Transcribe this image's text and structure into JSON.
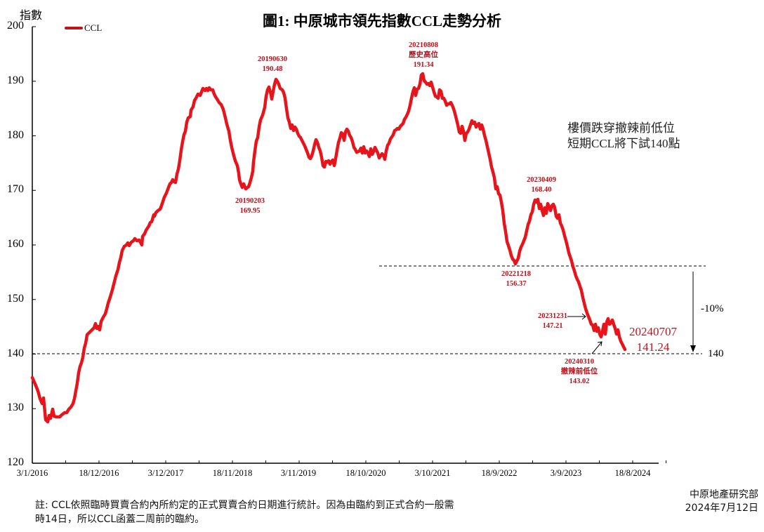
{
  "chart_data": {
    "type": "line",
    "title": "圖1: 中原城市領先指數CCL走勢分析",
    "ylabel": "指數",
    "xlabel": "",
    "ylim": [
      120,
      200
    ],
    "yticks": [
      120,
      130,
      140,
      150,
      160,
      170,
      180,
      190,
      200
    ],
    "xtick_labels": [
      "3/1/2016",
      "18/12/2016",
      "3/12/2017",
      "18/11/2018",
      "3/11/2019",
      "18/10/2020",
      "3/10/2021",
      "18/9/2022",
      "3/9/2023",
      "18/8/2024"
    ],
    "grid": false,
    "legend": {
      "position": "top-left",
      "entries": [
        "CCL"
      ]
    },
    "series": [
      {
        "name": "CCL",
        "color": "#e8141c",
        "points": [
          [
            "2016-01",
            135.5
          ],
          [
            "2016-02",
            133.0
          ],
          [
            "2016-03",
            131.5
          ],
          [
            "2016-04",
            127.5
          ],
          [
            "2016-05",
            128.2
          ],
          [
            "2016-06",
            128.5
          ],
          [
            "2016-07",
            129.5
          ],
          [
            "2016-08",
            131.5
          ],
          [
            "2016-09",
            136.0
          ],
          [
            "2016-10",
            141.5
          ],
          [
            "2016-11",
            144.0
          ],
          [
            "2016-12",
            146.0
          ],
          [
            "2017-01",
            149.0
          ],
          [
            "2017-02",
            153.0
          ],
          [
            "2017-03",
            157.0
          ],
          [
            "2017-04",
            160.0
          ],
          [
            "2017-05",
            160.5
          ],
          [
            "2017-06",
            161.0
          ],
          [
            "2017-07",
            160.5
          ],
          [
            "2017-08",
            162.5
          ],
          [
            "2017-09",
            165.0
          ],
          [
            "2017-10",
            168.0
          ],
          [
            "2017-11",
            171.0
          ],
          [
            "2017-12",
            175.0
          ],
          [
            "2018-01",
            180.0
          ],
          [
            "2018-02",
            183.0
          ],
          [
            "2018-03",
            182.0
          ],
          [
            "2018-04",
            186.0
          ],
          [
            "2018-05",
            188.5
          ],
          [
            "2018-06",
            188.5
          ],
          [
            "2018-07",
            187.0
          ],
          [
            "2018-08",
            184.0
          ],
          [
            "2018-09",
            179.0
          ],
          [
            "2018-10",
            174.0
          ],
          [
            "2018-11",
            170.5
          ],
          [
            "2019-01",
            169.95
          ],
          [
            "2019-02",
            172.0
          ],
          [
            "2019-03",
            177.0
          ],
          [
            "2019-04",
            182.0
          ],
          [
            "2019-05",
            188.0
          ],
          [
            "2019-06",
            190.48
          ],
          [
            "2019-07",
            188.0
          ],
          [
            "2019-08",
            186.0
          ],
          [
            "2019-09",
            181.0
          ],
          [
            "2019-10",
            178.0
          ],
          [
            "2019-11",
            180.5
          ],
          [
            "2019-12",
            177.0
          ],
          [
            "2020-01",
            175.0
          ],
          [
            "2020-02",
            176.0
          ],
          [
            "2020-03",
            178.5
          ],
          [
            "2020-04",
            181.0
          ],
          [
            "2020-05",
            180.5
          ],
          [
            "2020-06",
            177.5
          ],
          [
            "2020-07",
            176.5
          ],
          [
            "2020-08",
            177.5
          ],
          [
            "2020-09",
            176.0
          ],
          [
            "2020-10",
            177.0
          ],
          [
            "2020-11",
            175.5
          ],
          [
            "2020-12",
            177.0
          ],
          [
            "2021-01",
            180.0
          ],
          [
            "2021-02",
            183.5
          ],
          [
            "2021-03",
            185.5
          ],
          [
            "2021-04",
            188.0
          ],
          [
            "2021-05",
            188.5
          ],
          [
            "2021-06",
            191.0
          ],
          [
            "2021-08",
            191.34
          ],
          [
            "2021-09",
            188.5
          ],
          [
            "2021-10",
            187.5
          ],
          [
            "2021-11",
            185.0
          ],
          [
            "2021-12",
            184.0
          ],
          [
            "2022-01",
            180.0
          ],
          [
            "2022-02",
            181.5
          ],
          [
            "2022-03",
            182.0
          ],
          [
            "2022-04",
            178.0
          ],
          [
            "2022-05",
            175.0
          ],
          [
            "2022-06",
            172.0
          ],
          [
            "2022-07",
            170.0
          ],
          [
            "2022-08",
            167.0
          ],
          [
            "2022-09",
            163.0
          ],
          [
            "2022-10",
            159.0
          ],
          [
            "2022-12",
            156.37
          ],
          [
            "2023-01",
            158.0
          ],
          [
            "2023-02",
            162.0
          ],
          [
            "2023-03",
            166.0
          ],
          [
            "2023-04",
            168.4
          ],
          [
            "2023-05",
            166.0
          ],
          [
            "2023-06",
            167.0
          ],
          [
            "2023-07",
            165.0
          ],
          [
            "2023-08",
            161.0
          ],
          [
            "2023-09",
            157.0
          ],
          [
            "2023-10",
            153.0
          ],
          [
            "2023-11",
            150.0
          ],
          [
            "2023-12",
            147.21
          ],
          [
            "2024-01",
            146.0
          ],
          [
            "2024-02",
            144.0
          ],
          [
            "2024-03",
            143.02
          ],
          [
            "2024-04",
            146.5
          ],
          [
            "2024-05",
            146.0
          ],
          [
            "2024-06",
            143.5
          ],
          [
            "2024-07",
            141.24
          ]
        ]
      }
    ],
    "annotations": [
      {
        "date": "20190630",
        "label": "",
        "value": "190.48"
      },
      {
        "date": "20190203",
        "label": "",
        "value": "169.95"
      },
      {
        "date": "20210808",
        "label": "歷史高位",
        "value": "191.34"
      },
      {
        "date": "20221218",
        "label": "",
        "value": "156.37"
      },
      {
        "date": "20230409",
        "label": "",
        "value": "168.40"
      },
      {
        "date": "20231231",
        "label": "",
        "value": "147.21"
      },
      {
        "date": "20240310",
        "label": "撤辣前低位",
        "value": "143.02"
      },
      {
        "date": "20240707",
        "label": "",
        "value": "141.24"
      }
    ],
    "reference_lines": [
      {
        "value": 156.37,
        "style": "dashed"
      },
      {
        "value": 140,
        "style": "dashed",
        "label": "140"
      }
    ],
    "drop_annotation": "-10%"
  },
  "texts": {
    "title": "圖1: 中原城市領先指數CCL走勢分析",
    "ylabel": "指數",
    "legend": "CCL",
    "yticks": [
      "200",
      "190",
      "180",
      "170",
      "160",
      "150",
      "140",
      "130",
      "120"
    ],
    "xticks": [
      "3/1/2016",
      "18/12/2016",
      "3/12/2017",
      "18/11/2018",
      "3/11/2019",
      "18/10/2020",
      "3/10/2021",
      "18/9/2022",
      "3/9/2023",
      "18/8/2024"
    ],
    "ann": {
      "a1_date": "20190630",
      "a1_val": "190.48",
      "a2_date": "20190203",
      "a2_val": "169.95",
      "a3_date": "20210808",
      "a3_label": "歷史高位",
      "a3_val": "191.34",
      "a4_date": "20221218",
      "a4_val": "156.37",
      "a5_date": "20230409",
      "a5_val": "168.40",
      "a6_date": "20231231",
      "a6_val": "147.21",
      "a7_date": "20240310",
      "a7_label": "撤辣前低位",
      "a7_val": "143.02",
      "a8_date": "20240707",
      "a8_val": "141.24"
    },
    "note_line1": "樓價跌穿撤辣前低位",
    "note_line2": "短期CCL將下試140點",
    "pct": "-10%",
    "level": "140",
    "footnote_line1": "註: CCL依照臨時買賣合約內所約定的正式買賣合約日期進行統計。因為由臨約到正式合約一般需",
    "footnote_line2": "時14日，所以CCL函蓋二周前的臨約。",
    "source_line1": "中原地產研究部",
    "source_line2": "2024年7月12日"
  }
}
